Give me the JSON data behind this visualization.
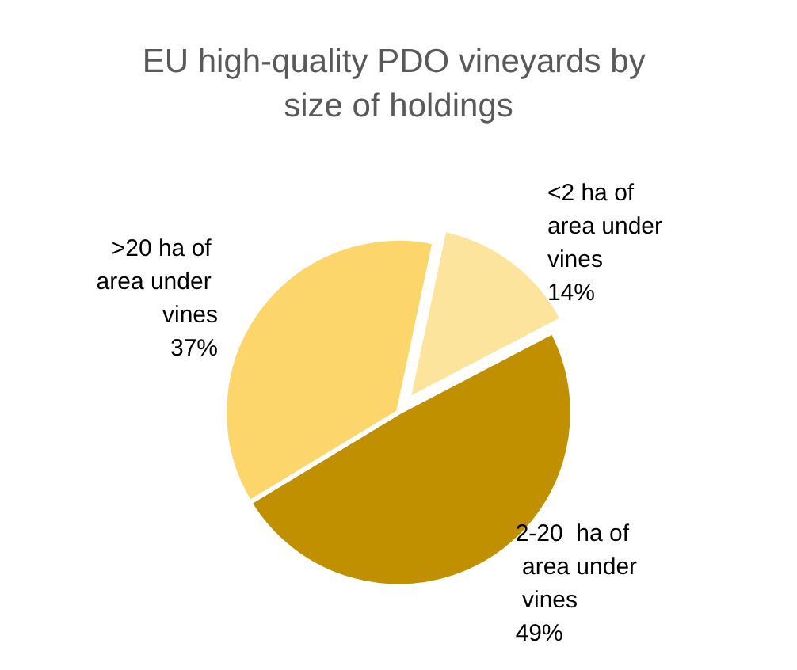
{
  "chart_data": {
    "type": "pie",
    "title": "EU high-quality PDO vineyards by size of holdings",
    "categories": [
      "<2 ha of area under vines",
      "2-20  ha of area under vines",
      ">20 ha of area under vines"
    ],
    "values": [
      14,
      49,
      37
    ],
    "colors": [
      "#fde49c",
      "#c09000",
      "#fcd66a"
    ],
    "value_labels": [
      "14%",
      "49%",
      "37%"
    ],
    "legend": false
  }
}
